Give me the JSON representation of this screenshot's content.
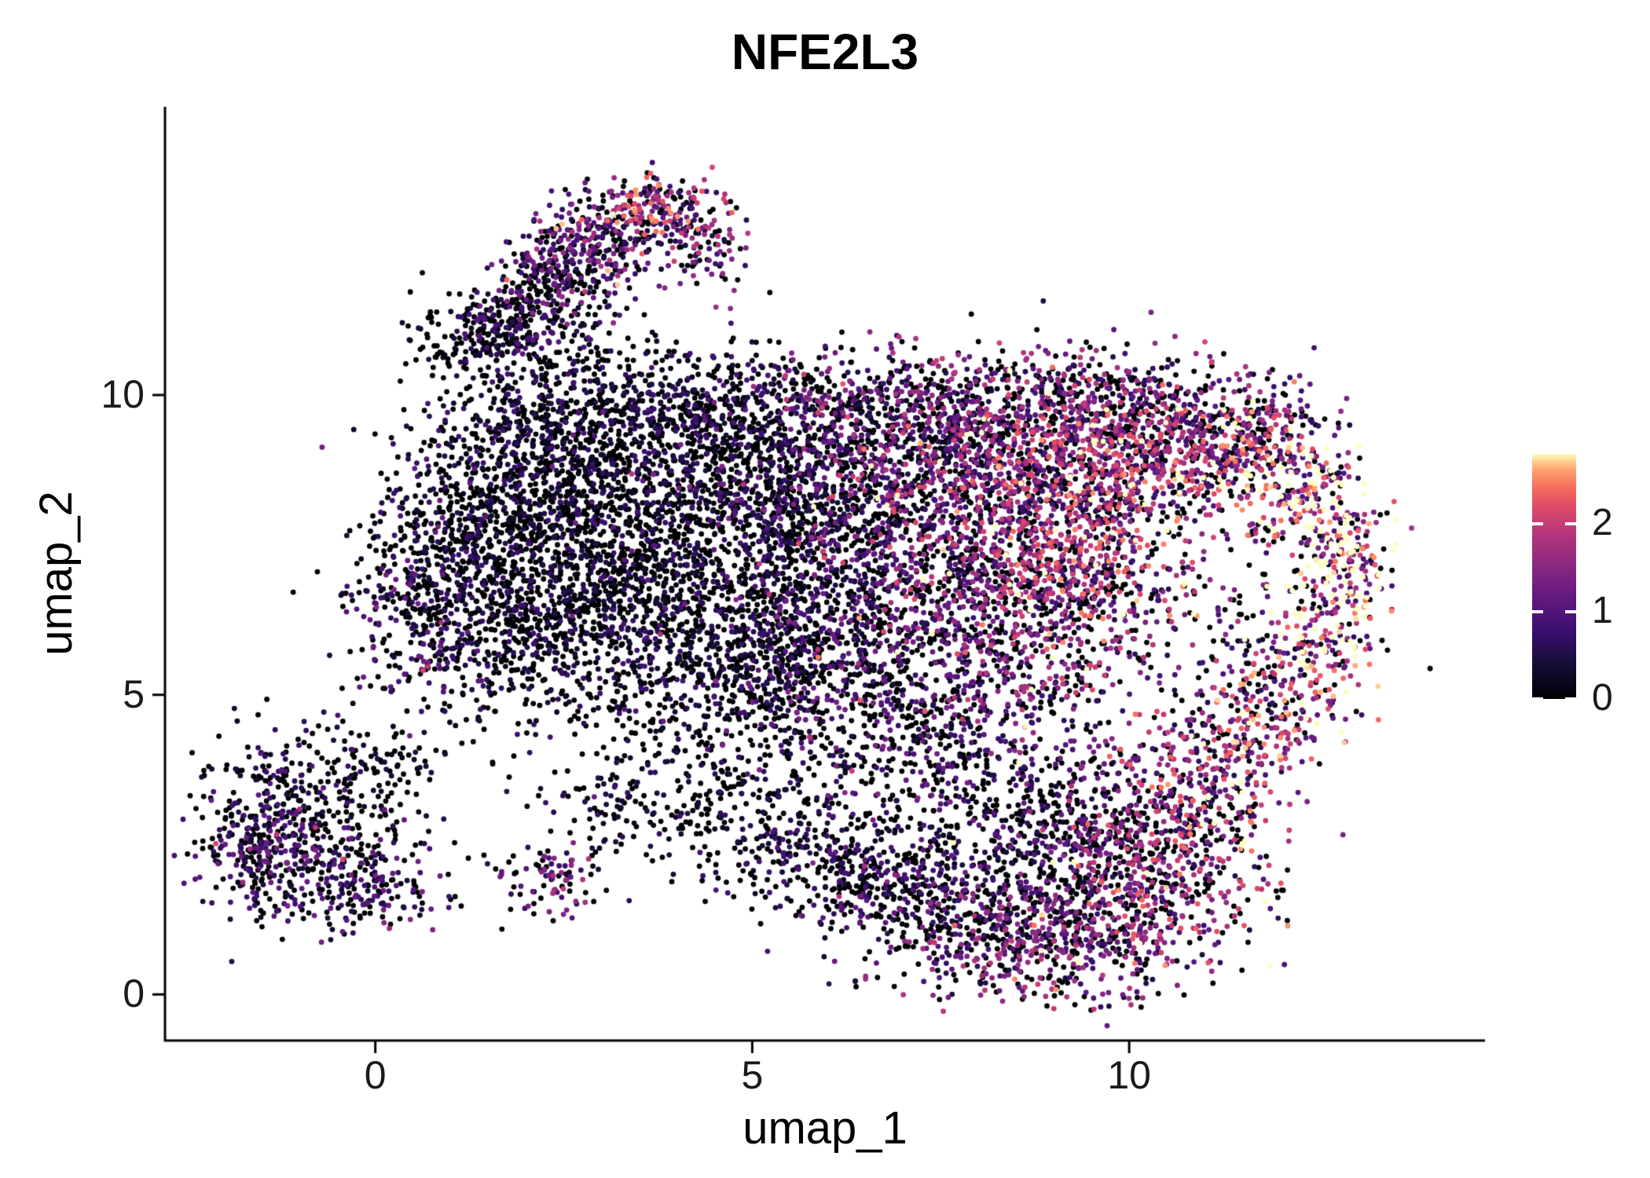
{
  "page": {
    "background": "#FFFFFF"
  },
  "chart_data": {
    "type": "scatter",
    "subtype": "umap-feature-plot",
    "title": "NFE2L3",
    "xlabel": "umap_1",
    "ylabel": "umap_2",
    "x_ticks": [
      0,
      5,
      10
    ],
    "y_ticks": [
      0,
      5,
      10
    ],
    "xlim": [
      -2.79,
      14.72
    ],
    "ylim": [
      -0.77,
      14.81
    ],
    "grid": false,
    "legend_position": "right",
    "point_color_encodes": "NFE2L3 expression level",
    "point_radius_px": 3.4,
    "axis_color": "#000000",
    "colormap": {
      "name": "magma",
      "stops": [
        [
          0.0,
          "#000004"
        ],
        [
          0.14,
          "#140E36"
        ],
        [
          0.28,
          "#3B0F70"
        ],
        [
          0.42,
          "#641A80"
        ],
        [
          0.55,
          "#8C2981"
        ],
        [
          0.68,
          "#B73779"
        ],
        [
          0.78,
          "#DE4968"
        ],
        [
          0.87,
          "#F7705C"
        ],
        [
          0.93,
          "#FE9F6D"
        ],
        [
          0.97,
          "#FECF92"
        ],
        [
          1.0,
          "#FCFDBF"
        ]
      ]
    },
    "colorbar": {
      "ticks": [
        0,
        1,
        2
      ],
      "vmin": 0,
      "vmax": 2.8
    },
    "seed": 42,
    "cluster_fields": [
      "cx",
      "cy",
      "sx",
      "sy",
      "n",
      "mean_expr",
      "zero_frac"
    ],
    "clusters": [
      [
        1.7,
        11.1,
        0.35,
        0.35,
        160,
        0.6,
        0.55
      ],
      [
        2.3,
        11.8,
        0.4,
        0.4,
        200,
        0.8,
        0.5
      ],
      [
        2.95,
        12.55,
        0.45,
        0.4,
        240,
        1.0,
        0.4
      ],
      [
        3.7,
        13.05,
        0.45,
        0.3,
        200,
        1.4,
        0.25
      ],
      [
        4.35,
        12.3,
        0.3,
        0.4,
        90,
        1.1,
        0.4
      ],
      [
        2.4,
        10.7,
        0.7,
        0.5,
        160,
        0.5,
        0.6
      ],
      [
        1.1,
        11.0,
        0.35,
        0.35,
        70,
        0.35,
        0.7
      ],
      [
        0.6,
        6.6,
        0.45,
        0.9,
        260,
        0.7,
        0.5
      ],
      [
        1.4,
        7.2,
        0.8,
        1.0,
        550,
        0.45,
        0.65
      ],
      [
        2.4,
        8.4,
        1.0,
        0.85,
        700,
        0.4,
        0.68
      ],
      [
        3.5,
        7.6,
        1.0,
        1.1,
        750,
        0.4,
        0.68
      ],
      [
        2.6,
        5.9,
        1.0,
        0.8,
        550,
        0.45,
        0.65
      ],
      [
        4.4,
        5.9,
        0.85,
        0.9,
        450,
        0.5,
        0.6
      ],
      [
        4.9,
        8.9,
        0.8,
        0.8,
        350,
        0.5,
        0.6
      ],
      [
        1.9,
        9.6,
        0.6,
        0.5,
        180,
        0.5,
        0.6
      ],
      [
        3.6,
        9.6,
        0.9,
        0.5,
        260,
        0.45,
        0.65
      ],
      [
        4.6,
        9.9,
        0.7,
        0.4,
        180,
        0.5,
        0.62
      ],
      [
        -1.15,
        3.3,
        0.6,
        0.55,
        260,
        0.6,
        0.55
      ],
      [
        -0.7,
        2.2,
        0.7,
        0.5,
        280,
        0.75,
        0.5
      ],
      [
        -1.7,
        2.4,
        0.35,
        0.5,
        130,
        0.7,
        0.5
      ],
      [
        0.2,
        3.9,
        0.5,
        0.4,
        80,
        0.4,
        0.65
      ],
      [
        -0.2,
        1.7,
        0.5,
        0.3,
        100,
        0.8,
        0.5
      ],
      [
        2.3,
        1.95,
        0.4,
        0.3,
        90,
        1.0,
        0.35
      ],
      [
        4.4,
        3.5,
        0.9,
        0.6,
        160,
        0.35,
        0.7
      ],
      [
        3.0,
        3.1,
        0.5,
        0.4,
        70,
        0.4,
        0.65
      ],
      [
        6.0,
        8.8,
        0.9,
        0.8,
        480,
        0.8,
        0.5
      ],
      [
        7.4,
        9.4,
        0.9,
        0.6,
        420,
        1.1,
        0.4
      ],
      [
        6.4,
        6.6,
        1.0,
        1.1,
        600,
        0.7,
        0.55
      ],
      [
        7.8,
        7.7,
        0.95,
        1.0,
        650,
        1.2,
        0.35
      ],
      [
        8.8,
        8.7,
        0.8,
        0.8,
        480,
        1.3,
        0.3
      ],
      [
        8.7,
        6.2,
        0.9,
        1.0,
        550,
        1.1,
        0.4
      ],
      [
        7.1,
        4.9,
        1.0,
        0.8,
        380,
        0.8,
        0.5
      ],
      [
        9.6,
        7.4,
        0.7,
        1.0,
        420,
        1.4,
        0.3
      ],
      [
        9.9,
        9.3,
        0.8,
        0.6,
        320,
        1.2,
        0.35
      ],
      [
        10.6,
        8.8,
        0.7,
        0.6,
        260,
        1.4,
        0.3
      ],
      [
        5.6,
        7.6,
        0.6,
        0.9,
        250,
        0.5,
        0.6
      ],
      [
        5.3,
        5.5,
        0.7,
        0.8,
        280,
        0.5,
        0.6
      ],
      [
        6.6,
        10.0,
        0.9,
        0.4,
        160,
        0.9,
        0.5
      ],
      [
        8.3,
        10.0,
        0.8,
        0.4,
        160,
        1.0,
        0.45
      ],
      [
        9.9,
        10.1,
        0.7,
        0.35,
        120,
        1.0,
        0.45
      ],
      [
        11.6,
        9.1,
        0.6,
        0.45,
        220,
        1.5,
        0.28
      ],
      [
        12.3,
        8.2,
        0.45,
        0.55,
        190,
        1.9,
        0.2
      ],
      [
        12.85,
        7.0,
        0.3,
        0.65,
        160,
        2.1,
        0.18
      ],
      [
        12.5,
        5.7,
        0.4,
        0.55,
        150,
        1.8,
        0.22
      ],
      [
        11.9,
        4.7,
        0.5,
        0.5,
        160,
        1.5,
        0.28
      ],
      [
        11.1,
        4.1,
        0.6,
        0.45,
        170,
        1.3,
        0.3
      ],
      [
        11.3,
        6.2,
        0.5,
        0.9,
        90,
        1.2,
        0.45
      ],
      [
        10.9,
        9.6,
        0.8,
        0.4,
        160,
        1.1,
        0.45
      ],
      [
        5.6,
        2.6,
        0.8,
        0.5,
        220,
        0.5,
        0.62
      ],
      [
        6.7,
        1.9,
        0.85,
        0.5,
        280,
        0.6,
        0.58
      ],
      [
        7.9,
        1.2,
        0.9,
        0.55,
        330,
        0.9,
        0.48
      ],
      [
        9.1,
        0.85,
        0.9,
        0.5,
        380,
        1.1,
        0.42
      ],
      [
        10.2,
        1.7,
        0.7,
        0.65,
        330,
        1.3,
        0.35
      ],
      [
        10.9,
        2.8,
        0.6,
        0.6,
        230,
        1.4,
        0.32
      ],
      [
        9.7,
        2.9,
        0.8,
        0.7,
        280,
        1.0,
        0.45
      ],
      [
        8.5,
        2.3,
        0.9,
        0.6,
        250,
        0.7,
        0.55
      ],
      [
        7.6,
        3.7,
        1.2,
        0.6,
        280,
        0.7,
        0.55
      ]
    ]
  }
}
